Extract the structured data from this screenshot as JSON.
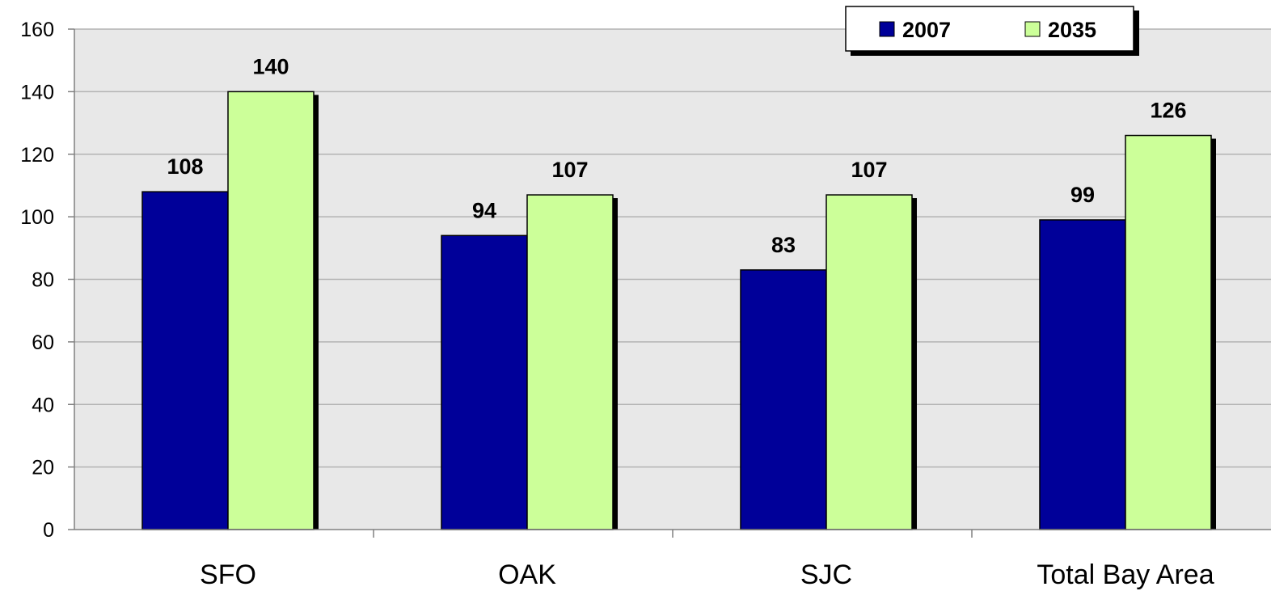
{
  "chart_data": {
    "type": "bar",
    "categories": [
      "SFO",
      "OAK",
      "SJC",
      "Total Bay Area"
    ],
    "series": [
      {
        "name": "2007",
        "values": [
          108,
          94,
          83,
          99
        ],
        "color": "#000099"
      },
      {
        "name": "2035",
        "values": [
          140,
          107,
          107,
          126
        ],
        "color": "#ccff99"
      }
    ],
    "ylim": [
      0,
      160
    ],
    "yticks": [
      0,
      20,
      40,
      60,
      80,
      100,
      120,
      140,
      160
    ],
    "grid": true,
    "plot_background": "#e8e8e8",
    "legend": "top-right",
    "data_labels": true
  }
}
